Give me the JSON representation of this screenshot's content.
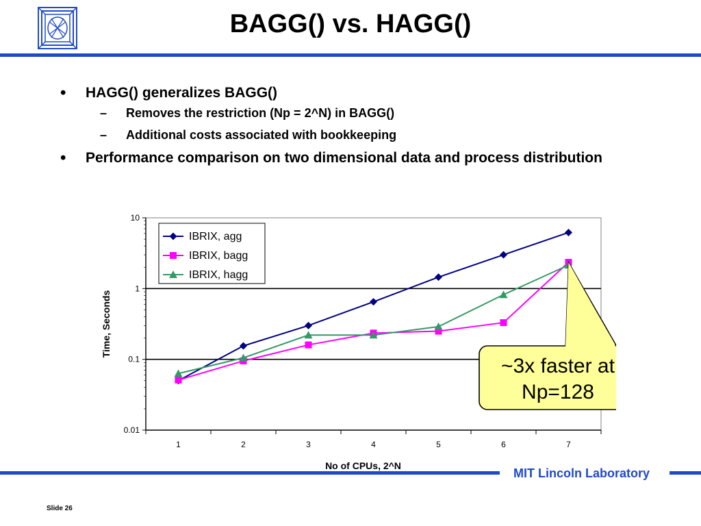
{
  "slide": {
    "title": "BAGG() vs. HAGG()",
    "bullets": [
      {
        "text": "HAGG() generalizes BAGG()",
        "sub": [
          "Removes the restriction (Np = 2^N) in BAGG()",
          "Additional costs associated with bookkeeping"
        ]
      },
      {
        "text": "Performance comparison on two dimensional data and process distribution",
        "sub": []
      }
    ],
    "bullet_mark": "•",
    "sub_mark": "–",
    "footer_lab": "MIT Lincoln Laboratory",
    "slide_number": "Slide 26",
    "accent_color": "#1f49c7",
    "logo_icon": "mit-ll-logo-icon"
  },
  "chart_data": {
    "type": "line",
    "x": [
      1,
      2,
      3,
      4,
      5,
      6,
      7
    ],
    "xlabel": "No of CPUs, 2^N",
    "ylabel": "Time, Seconds",
    "yscale": "log",
    "ylim": [
      0.01,
      10
    ],
    "yticks": [
      "0.01",
      "0.1",
      "1",
      "10"
    ],
    "xticks": [
      "1",
      "2",
      "3",
      "4",
      "5",
      "6",
      "7"
    ],
    "series": [
      {
        "name": "IBRIX, agg",
        "color": "#000080",
        "marker": "diamond",
        "values": [
          0.05,
          0.155,
          0.3,
          0.65,
          1.45,
          3.0,
          6.2
        ]
      },
      {
        "name": "IBRIX, bagg",
        "color": "#ff00ff",
        "marker": "square",
        "values": [
          0.051,
          0.095,
          0.16,
          0.235,
          0.25,
          0.33,
          2.35
        ]
      },
      {
        "name": "IBRIX, hagg",
        "color": "#339966",
        "marker": "triangle",
        "values": [
          0.063,
          0.105,
          0.22,
          0.22,
          0.29,
          0.82,
          2.15
        ]
      }
    ],
    "legend_position": "top-left",
    "annotation": {
      "text_lines": [
        "~3x faster at",
        "Np=128"
      ],
      "fill": "#ffff99"
    }
  }
}
